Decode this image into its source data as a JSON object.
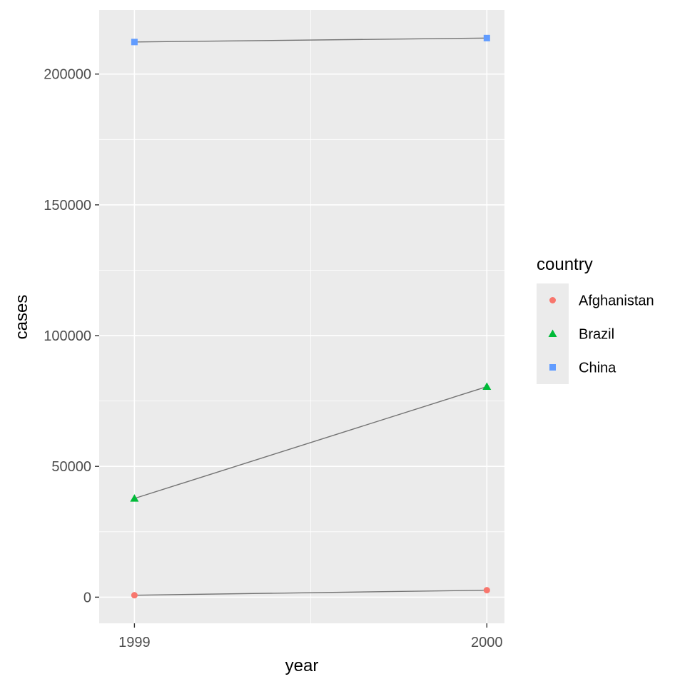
{
  "chart_data": {
    "type": "line",
    "title": "",
    "xlabel": "year",
    "ylabel": "cases",
    "x": [
      1999,
      2000
    ],
    "xticks": [
      "1999",
      "2000"
    ],
    "xlim": [
      1998.9,
      2000.05
    ],
    "yticks": [
      0,
      50000,
      100000,
      150000,
      200000
    ],
    "ytick_labels": [
      "0",
      "50000",
      "100000",
      "150000",
      "200000"
    ],
    "ylim": [
      -10000,
      224500
    ],
    "grid": true,
    "legend": {
      "title": "country",
      "placement": "right"
    },
    "line_color": "#737373",
    "panel_background": "#EBEBEB",
    "series": [
      {
        "name": "Afghanistan",
        "values": [
          745,
          2666
        ],
        "color": "#F8766D",
        "marker": "circle"
      },
      {
        "name": "Brazil",
        "values": [
          37737,
          80488
        ],
        "color": "#00BA38",
        "marker": "triangle"
      },
      {
        "name": "China",
        "values": [
          212258,
          213766
        ],
        "color": "#619CFF",
        "marker": "square"
      }
    ]
  }
}
